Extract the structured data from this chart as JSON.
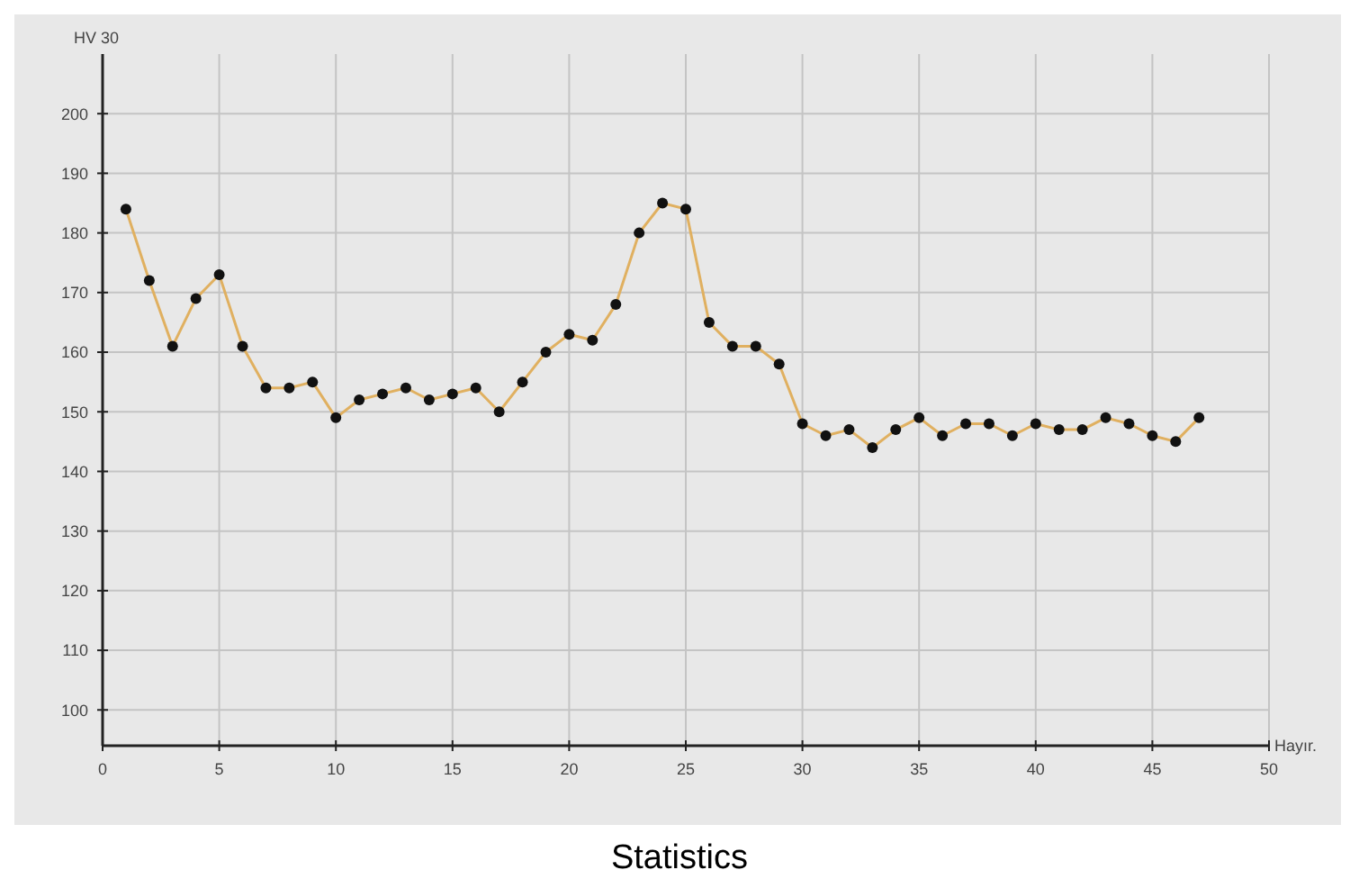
{
  "chart_data": {
    "type": "line",
    "title": "Statistics",
    "xlabel": "Hayır.",
    "ylabel": "HV 30",
    "x": [
      1,
      2,
      3,
      4,
      5,
      6,
      7,
      8,
      9,
      10,
      11,
      12,
      13,
      14,
      15,
      16,
      17,
      18,
      19,
      20,
      21,
      22,
      23,
      24,
      25,
      26,
      27,
      28,
      29,
      30,
      31,
      32,
      33,
      34,
      35,
      36,
      37,
      38,
      39,
      40,
      41,
      42,
      43,
      44,
      45,
      46,
      47
    ],
    "series": [
      {
        "color": "#e0b060",
        "values": [
          184,
          172,
          161,
          169,
          173,
          161,
          154,
          154,
          155,
          149,
          152,
          153,
          154,
          152,
          153,
          154,
          150,
          155,
          160,
          163,
          162,
          168,
          180,
          185,
          184,
          165,
          161,
          161,
          158,
          148,
          146,
          147,
          144,
          147,
          149,
          146,
          148,
          148,
          146,
          148,
          147,
          147,
          149,
          148,
          146,
          145,
          149
        ]
      }
    ],
    "xlim": [
      0,
      50
    ],
    "xticks": [
      0,
      5,
      10,
      15,
      20,
      25,
      30,
      35,
      40,
      45,
      50
    ],
    "ylim": [
      94,
      210
    ],
    "yticks": [
      100,
      110,
      120,
      130,
      140,
      150,
      160,
      170,
      180,
      190,
      200
    ],
    "grid": true,
    "marker": "circle",
    "line_style": "solid"
  }
}
